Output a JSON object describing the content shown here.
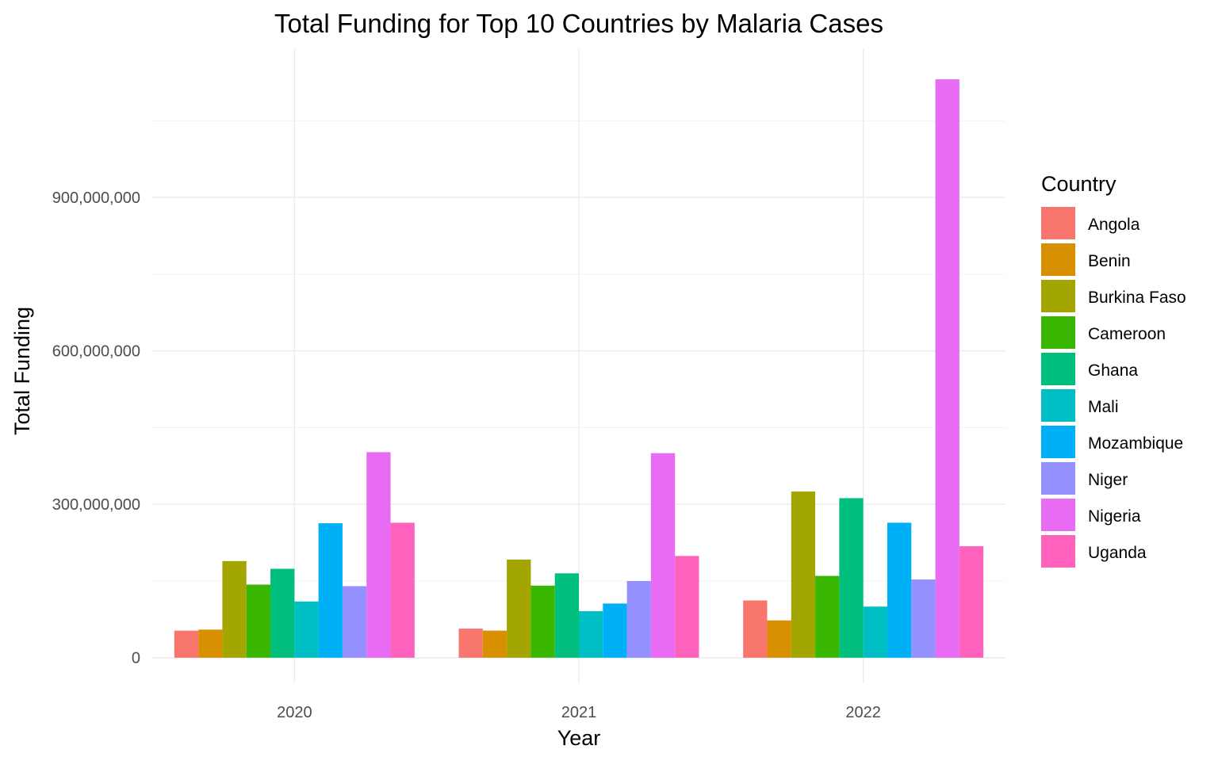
{
  "chart_data": {
    "type": "bar",
    "title": "Total Funding for Top 10 Countries by Malaria Cases",
    "xlabel": "Year",
    "ylabel": "Total Funding",
    "categories": [
      "2020",
      "2021",
      "2022"
    ],
    "ylim": [
      -50000000,
      1190000000
    ],
    "yticks": [
      0,
      300000000,
      600000000,
      900000000
    ],
    "ytick_labels": [
      "0",
      "300,000,000",
      "600,000,000",
      "900,000,000"
    ],
    "grid": true,
    "legend": {
      "title": "Country",
      "position": "right"
    },
    "series": [
      {
        "name": "Angola",
        "color": "#F8766D",
        "values": [
          53000000,
          57000000,
          112000000
        ]
      },
      {
        "name": "Benin",
        "color": "#D89000",
        "values": [
          55000000,
          53000000,
          73000000
        ]
      },
      {
        "name": "Burkina Faso",
        "color": "#A3A500",
        "values": [
          189000000,
          192000000,
          325000000
        ]
      },
      {
        "name": "Cameroon",
        "color": "#39B600",
        "values": [
          143000000,
          141000000,
          160000000
        ]
      },
      {
        "name": "Ghana",
        "color": "#00BF7D",
        "values": [
          174000000,
          165000000,
          312000000
        ]
      },
      {
        "name": "Mali",
        "color": "#00BFC4",
        "values": [
          110000000,
          91000000,
          100000000
        ]
      },
      {
        "name": "Mozambique",
        "color": "#00B0F6",
        "values": [
          263000000,
          106000000,
          264000000
        ]
      },
      {
        "name": "Niger",
        "color": "#9590FF",
        "values": [
          140000000,
          150000000,
          153000000
        ]
      },
      {
        "name": "Nigeria",
        "color": "#E76BF3",
        "values": [
          402000000,
          400000000,
          1131000000
        ]
      },
      {
        "name": "Uganda",
        "color": "#FF62BC",
        "values": [
          264000000,
          199000000,
          218000000
        ]
      }
    ]
  }
}
